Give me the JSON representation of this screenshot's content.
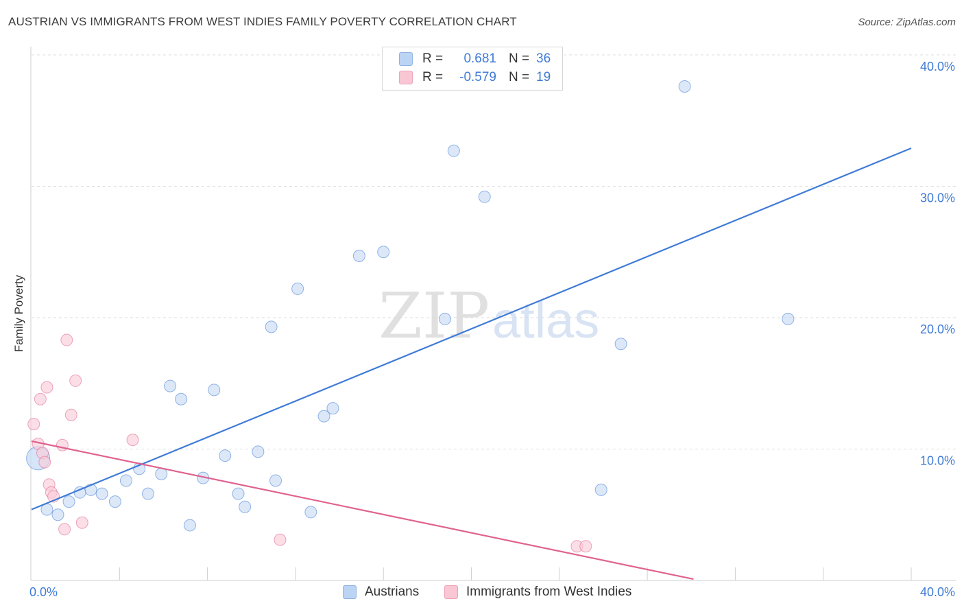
{
  "header": {
    "title": "AUSTRIAN VS IMMIGRANTS FROM WEST INDIES FAMILY POVERTY CORRELATION CHART",
    "source": "Source: ZipAtlas.com"
  },
  "watermark": {
    "part1": "ZIP",
    "part2": "atlas"
  },
  "legend": {
    "r_label": "R =",
    "n_label": "N =",
    "austrians": {
      "r": "0.681",
      "n": "36",
      "color": "#3f7bd6"
    },
    "immigrants": {
      "r": "-0.579",
      "n": "19",
      "color": "#e0628f"
    }
  },
  "chart_data": {
    "type": "scatter",
    "title": "AUSTRIAN VS IMMIGRANTS FROM WEST INDIES FAMILY POVERTY CORRELATION CHART",
    "xlabel": "",
    "ylabel": "Family Poverty",
    "xlim": [
      0,
      40
    ],
    "ylim": [
      0,
      40
    ],
    "x_tick_labels": [
      "0.0%",
      "40.0%"
    ],
    "y_tick_labels": [
      "10.0%",
      "20.0%",
      "30.0%",
      "40.0%"
    ],
    "y_ticks": [
      10,
      20,
      30,
      40
    ],
    "grid": true,
    "legend_position": "top-center and bottom",
    "series": [
      {
        "name": "Austrians",
        "color": "#3f7bd6",
        "fill": "#c9dcf5",
        "points": [
          [
            0.3,
            9.3
          ],
          [
            0.7,
            5.4
          ],
          [
            1.2,
            5.0
          ],
          [
            1.7,
            6.0
          ],
          [
            2.2,
            6.7
          ],
          [
            2.7,
            6.9
          ],
          [
            3.2,
            6.6
          ],
          [
            3.8,
            6.0
          ],
          [
            4.3,
            7.6
          ],
          [
            4.9,
            8.5
          ],
          [
            5.3,
            6.6
          ],
          [
            5.9,
            8.1
          ],
          [
            6.3,
            14.8
          ],
          [
            6.8,
            13.8
          ],
          [
            7.2,
            4.2
          ],
          [
            7.8,
            7.8
          ],
          [
            8.3,
            14.5
          ],
          [
            8.8,
            9.5
          ],
          [
            9.4,
            6.6
          ],
          [
            9.7,
            5.6
          ],
          [
            10.3,
            9.8
          ],
          [
            10.9,
            19.3
          ],
          [
            11.1,
            7.6
          ],
          [
            12.1,
            22.2
          ],
          [
            12.7,
            5.2
          ],
          [
            13.3,
            12.5
          ],
          [
            13.7,
            13.1
          ],
          [
            14.9,
            24.7
          ],
          [
            16.0,
            25.0
          ],
          [
            18.8,
            19.9
          ],
          [
            19.2,
            32.7
          ],
          [
            20.6,
            29.2
          ],
          [
            25.9,
            6.9
          ],
          [
            26.8,
            18.0
          ],
          [
            29.7,
            37.6
          ],
          [
            34.4,
            19.9
          ]
        ],
        "trend": {
          "x": [
            0,
            40
          ],
          "y": [
            5.4,
            32.9
          ]
        }
      },
      {
        "name": "Immigrants from West Indies",
        "color": "#e0628f",
        "fill": "#f9ccd9",
        "points": [
          [
            0.1,
            11.9
          ],
          [
            0.3,
            10.4
          ],
          [
            0.4,
            13.8
          ],
          [
            0.5,
            9.7
          ],
          [
            0.6,
            9.0
          ],
          [
            0.7,
            14.7
          ],
          [
            0.8,
            7.3
          ],
          [
            0.9,
            6.7
          ],
          [
            1.0,
            6.4
          ],
          [
            1.4,
            10.3
          ],
          [
            1.5,
            3.9
          ],
          [
            1.6,
            18.3
          ],
          [
            1.8,
            12.6
          ],
          [
            2.0,
            15.2
          ],
          [
            2.3,
            4.4
          ],
          [
            4.6,
            10.7
          ],
          [
            11.3,
            3.1
          ],
          [
            24.8,
            2.6
          ],
          [
            25.2,
            2.6
          ]
        ],
        "trend": {
          "x": [
            0,
            30.1
          ],
          "y": [
            10.6,
            0.1
          ]
        }
      }
    ]
  }
}
